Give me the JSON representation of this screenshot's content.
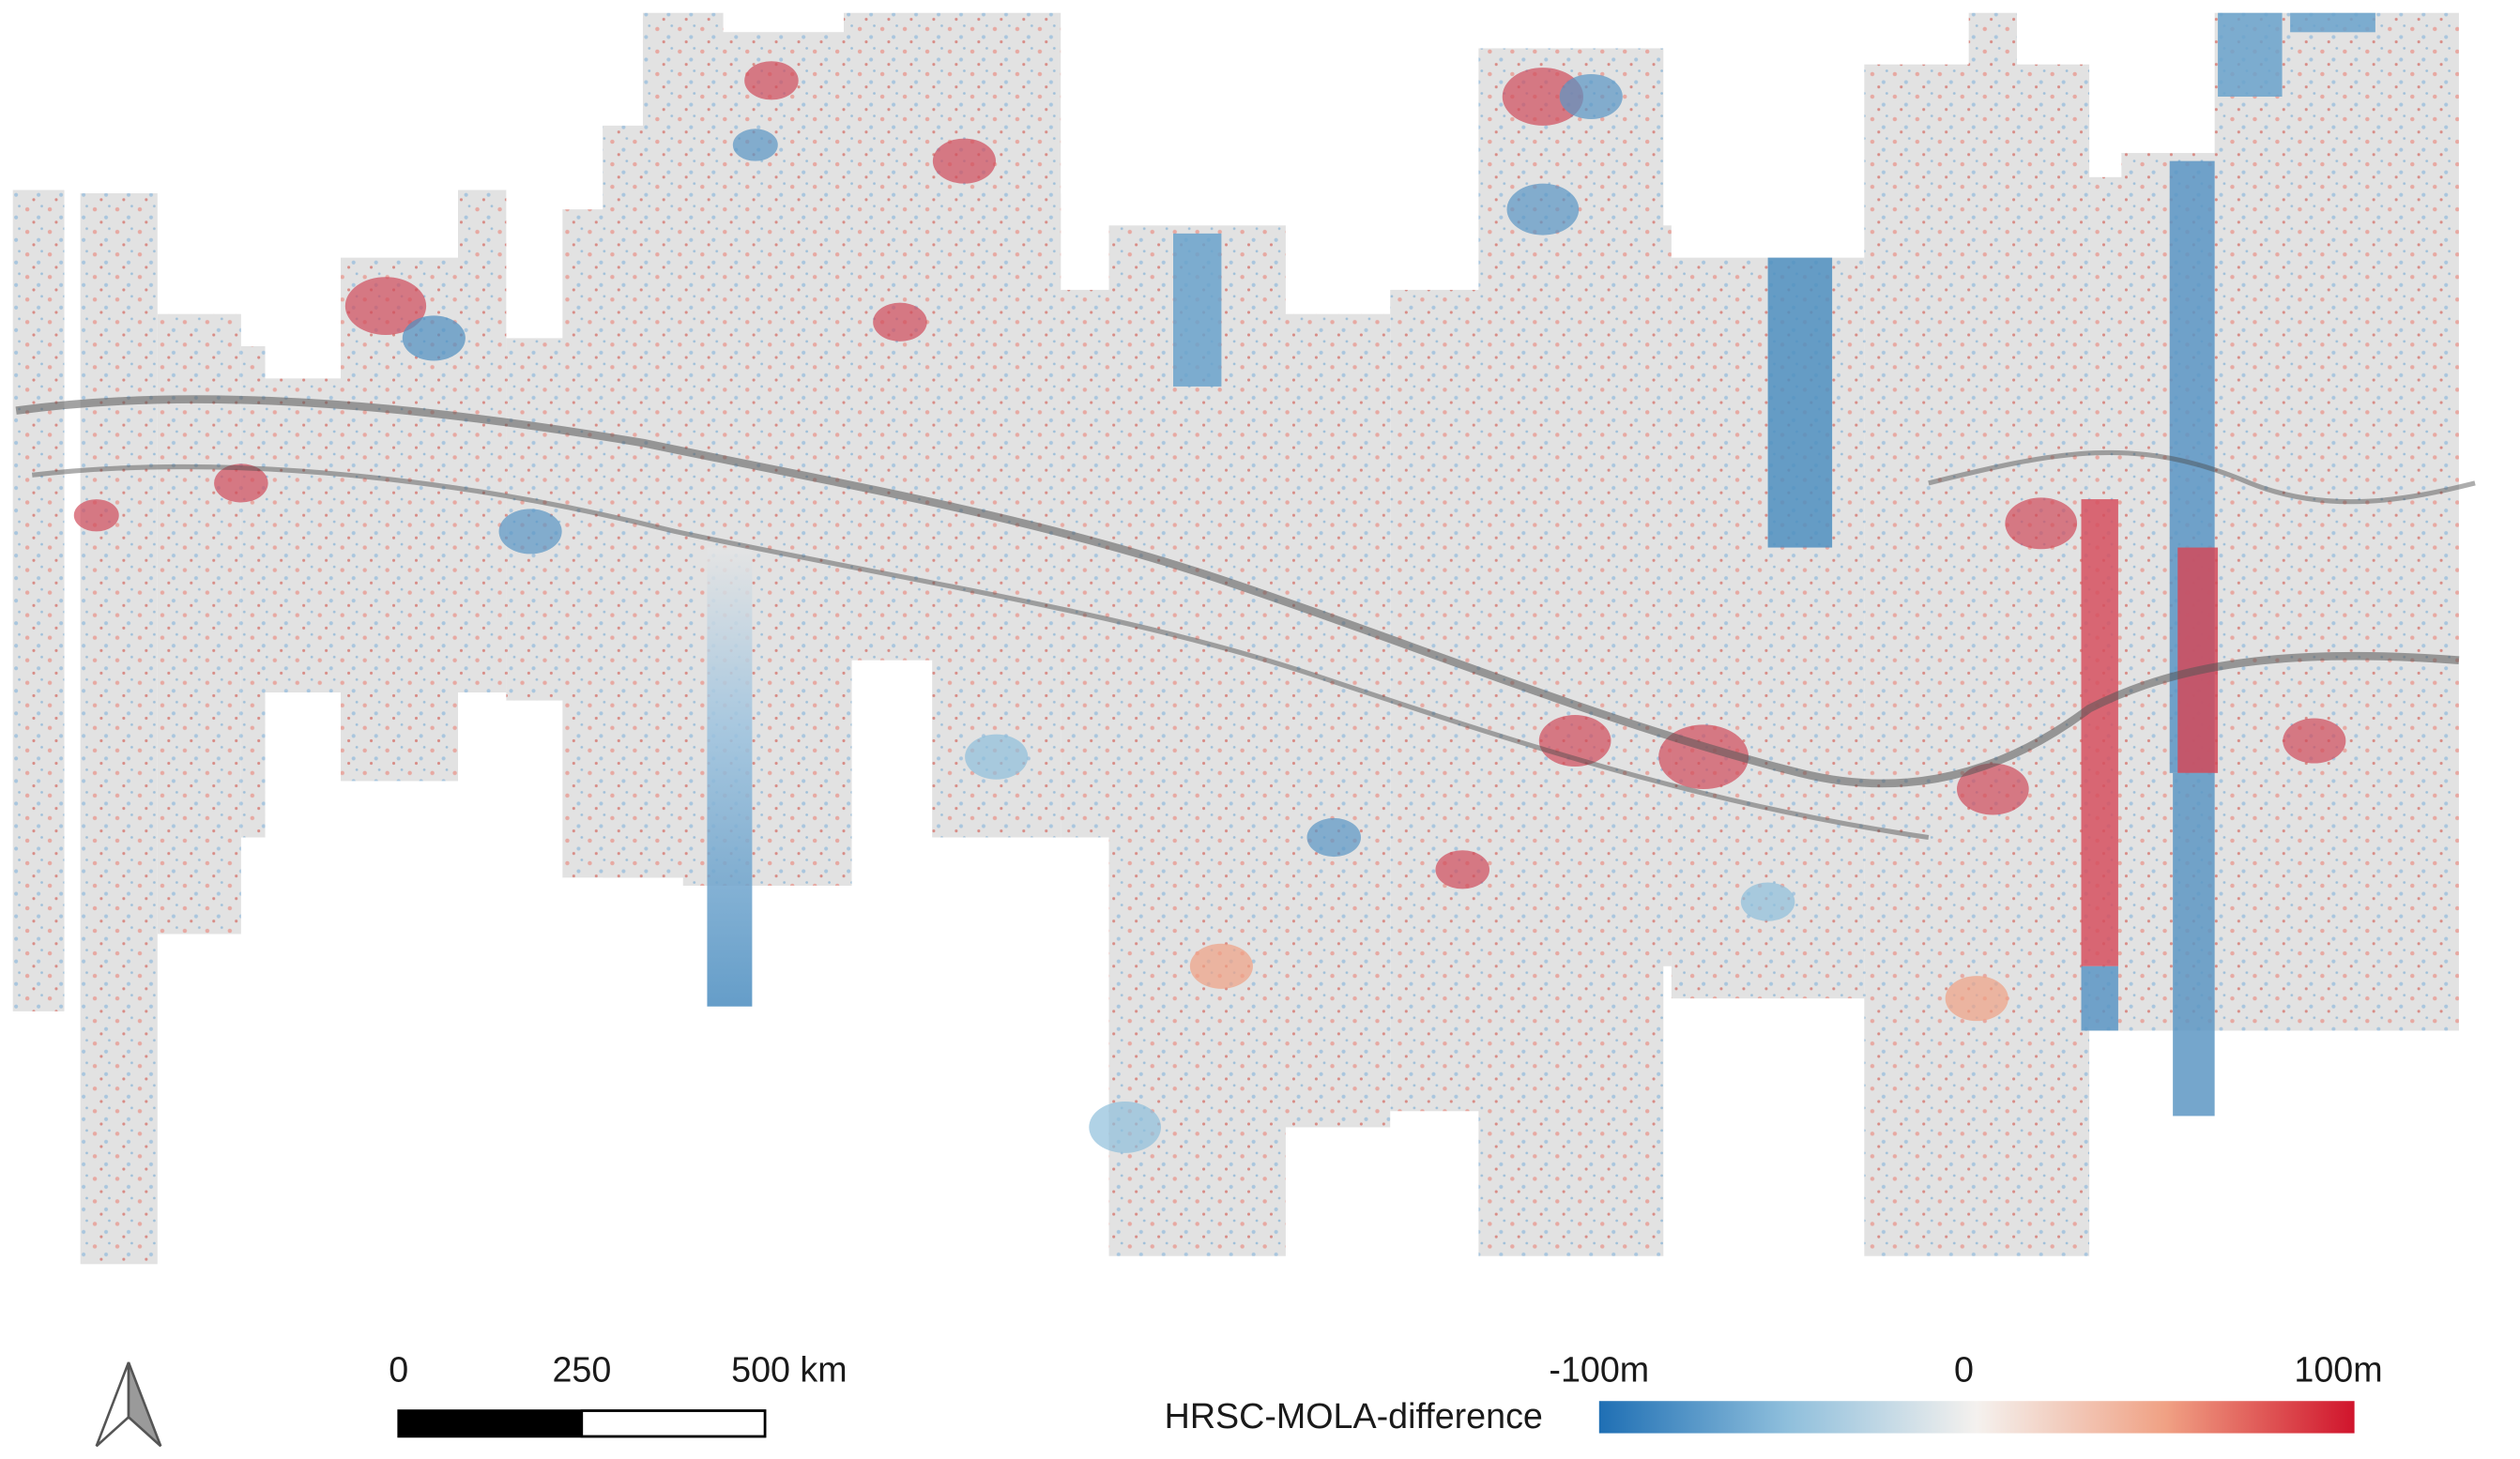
{
  "scale_bar": {
    "labels": [
      "0",
      "250",
      "500 km"
    ]
  },
  "legend": {
    "title": "HRSC-MOLA-difference",
    "labels": [
      "-100m",
      "0",
      "100m"
    ]
  }
}
